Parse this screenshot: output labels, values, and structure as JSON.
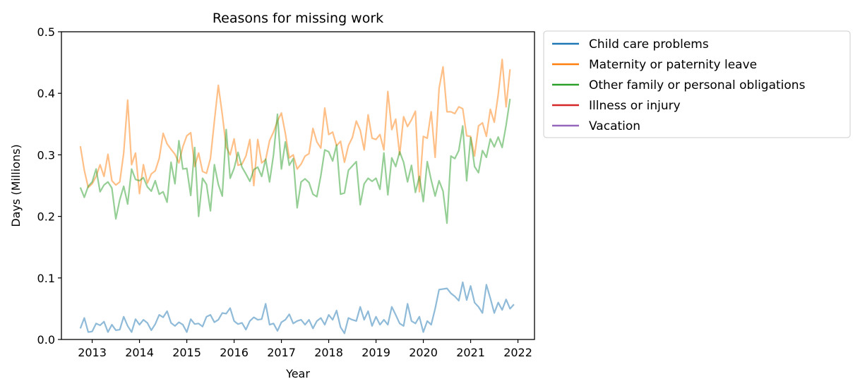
{
  "chart_data": {
    "type": "line",
    "title": "Reasons for missing work",
    "xlabel": "Year",
    "ylabel": "Days (Millions)",
    "xlim": [
      2012.35,
      2022.35
    ],
    "ylim": [
      0,
      0.5
    ],
    "xticks": [
      2013,
      2014,
      2015,
      2016,
      2017,
      2018,
      2019,
      2020,
      2021,
      2022
    ],
    "yticks": [
      0.0,
      0.1,
      0.2,
      0.3,
      0.4,
      0.5
    ],
    "ytick_labels": [
      "0.0",
      "0.1",
      "0.2",
      "0.3",
      "0.4",
      "0.5"
    ],
    "grid": false,
    "legend_position": "outside-right-top",
    "x_start": 2012.75,
    "x_step": 0.08333,
    "series": [
      {
        "name": "Child care problems",
        "color": "#1f77b4",
        "line_alpha": 0.5,
        "values": [
          0.018,
          0.035,
          0.012,
          0.013,
          0.026,
          0.023,
          0.029,
          0.012,
          0.024,
          0.015,
          0.016,
          0.037,
          0.022,
          0.012,
          0.033,
          0.024,
          0.032,
          0.027,
          0.015,
          0.025,
          0.04,
          0.036,
          0.046,
          0.027,
          0.022,
          0.028,
          0.024,
          0.012,
          0.033,
          0.025,
          0.026,
          0.021,
          0.037,
          0.04,
          0.028,
          0.032,
          0.043,
          0.042,
          0.051,
          0.03,
          0.025,
          0.027,
          0.016,
          0.03,
          0.036,
          0.032,
          0.033,
          0.058,
          0.024,
          0.026,
          0.014,
          0.028,
          0.032,
          0.041,
          0.026,
          0.03,
          0.032,
          0.024,
          0.032,
          0.018,
          0.03,
          0.035,
          0.024,
          0.04,
          0.032,
          0.047,
          0.02,
          0.01,
          0.035,
          0.032,
          0.03,
          0.053,
          0.032,
          0.046,
          0.022,
          0.037,
          0.024,
          0.032,
          0.024,
          0.053,
          0.04,
          0.026,
          0.022,
          0.058,
          0.03,
          0.026,
          0.037,
          0.012,
          0.03,
          0.024,
          0.05,
          0.081,
          0.082,
          0.083,
          0.075,
          0.07,
          0.063,
          0.093,
          0.064,
          0.087,
          0.06,
          0.053,
          0.043,
          0.089,
          0.067,
          0.043,
          0.06,
          0.048,
          0.065,
          0.05,
          0.057
        ]
      },
      {
        "name": "Maternity or paternity leave",
        "color": "#ff7f0e",
        "line_alpha": 0.5,
        "values": [
          0.314,
          0.275,
          0.247,
          0.253,
          0.265,
          0.284,
          0.265,
          0.301,
          0.258,
          0.251,
          0.256,
          0.303,
          0.389,
          0.284,
          0.303,
          0.237,
          0.284,
          0.254,
          0.269,
          0.274,
          0.294,
          0.335,
          0.318,
          0.309,
          0.301,
          0.287,
          0.313,
          0.331,
          0.336,
          0.281,
          0.303,
          0.273,
          0.27,
          0.294,
          0.355,
          0.413,
          0.366,
          0.313,
          0.3,
          0.326,
          0.283,
          0.285,
          0.298,
          0.325,
          0.25,
          0.325,
          0.287,
          0.292,
          0.323,
          0.337,
          0.355,
          0.368,
          0.335,
          0.295,
          0.3,
          0.277,
          0.285,
          0.298,
          0.302,
          0.343,
          0.321,
          0.311,
          0.376,
          0.333,
          0.337,
          0.315,
          0.322,
          0.288,
          0.315,
          0.328,
          0.355,
          0.34,
          0.308,
          0.365,
          0.327,
          0.325,
          0.333,
          0.308,
          0.403,
          0.341,
          0.358,
          0.3,
          0.362,
          0.346,
          0.357,
          0.371,
          0.24,
          0.33,
          0.327,
          0.37,
          0.296,
          0.408,
          0.443,
          0.37,
          0.37,
          0.367,
          0.378,
          0.375,
          0.331,
          0.33,
          0.298,
          0.347,
          0.352,
          0.33,
          0.374,
          0.353,
          0.398,
          0.455,
          0.378,
          0.439
        ]
      },
      {
        "name": "Other family or personal obligations",
        "color": "#2ca02c",
        "line_alpha": 0.5,
        "values": [
          0.247,
          0.231,
          0.249,
          0.256,
          0.277,
          0.24,
          0.251,
          0.256,
          0.246,
          0.196,
          0.227,
          0.249,
          0.22,
          0.277,
          0.26,
          0.258,
          0.263,
          0.248,
          0.241,
          0.258,
          0.236,
          0.24,
          0.223,
          0.288,
          0.253,
          0.323,
          0.277,
          0.278,
          0.234,
          0.312,
          0.2,
          0.262,
          0.252,
          0.209,
          0.284,
          0.252,
          0.233,
          0.341,
          0.262,
          0.278,
          0.304,
          0.28,
          0.269,
          0.257,
          0.276,
          0.28,
          0.265,
          0.293,
          0.256,
          0.3,
          0.366,
          0.277,
          0.321,
          0.283,
          0.294,
          0.214,
          0.256,
          0.261,
          0.255,
          0.236,
          0.232,
          0.266,
          0.308,
          0.305,
          0.29,
          0.316,
          0.236,
          0.238,
          0.275,
          0.282,
          0.289,
          0.219,
          0.253,
          0.262,
          0.257,
          0.262,
          0.244,
          0.303,
          0.235,
          0.295,
          0.281,
          0.305,
          0.288,
          0.256,
          0.283,
          0.239,
          0.265,
          0.224,
          0.289,
          0.259,
          0.233,
          0.258,
          0.241,
          0.189,
          0.298,
          0.294,
          0.307,
          0.347,
          0.258,
          0.328,
          0.281,
          0.271,
          0.307,
          0.296,
          0.326,
          0.313,
          0.329,
          0.312,
          0.348,
          0.391
        ]
      },
      {
        "name": "Illness or injury",
        "color": "#d62728",
        "line_alpha": 0.5,
        "values": []
      },
      {
        "name": "Vacation",
        "color": "#9467bd",
        "line_alpha": 0.5,
        "values": []
      }
    ]
  }
}
